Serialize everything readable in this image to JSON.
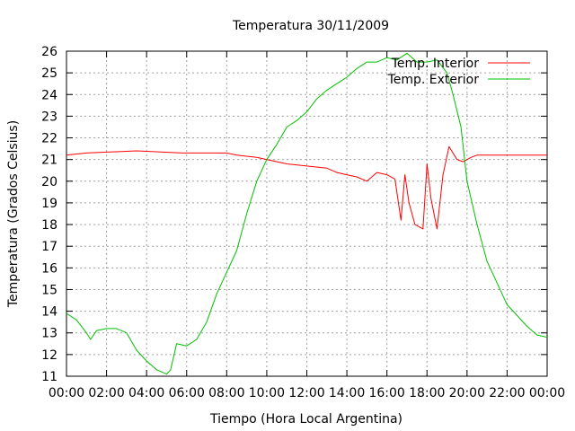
{
  "chart_data": {
    "type": "line",
    "title": "Temperatura 30/11/2009",
    "xlabel": "Tiempo (Hora Local Argentina)",
    "ylabel": "Temperatura (Grados Celsius)",
    "xlim": [
      0,
      24
    ],
    "ylim": [
      11,
      26
    ],
    "grid": true,
    "legend_position": "top-right",
    "x_ticks": [
      "00:00",
      "02:00",
      "04:00",
      "06:00",
      "08:00",
      "10:00",
      "12:00",
      "14:00",
      "16:00",
      "18:00",
      "20:00",
      "22:00",
      "00:00"
    ],
    "y_ticks": [
      11,
      12,
      13,
      14,
      15,
      16,
      17,
      18,
      19,
      20,
      21,
      22,
      23,
      24,
      25,
      26
    ],
    "series": [
      {
        "name": "Temp. Interior",
        "color": "#ff0000",
        "x": [
          0,
          1,
          3.5,
          5.8,
          8,
          8.5,
          9.5,
          10.5,
          11,
          12,
          13,
          13.5,
          14,
          14.5,
          15,
          15.5,
          16,
          16.4,
          16.7,
          16.9,
          17.1,
          17.4,
          17.8,
          18,
          18.2,
          18.5,
          18.8,
          19.1,
          19.5,
          19.8,
          20.2,
          20.5,
          21,
          22,
          24
        ],
        "values": [
          21.2,
          21.3,
          21.4,
          21.3,
          21.3,
          21.2,
          21.1,
          20.9,
          20.8,
          20.7,
          20.6,
          20.4,
          20.3,
          20.2,
          20.0,
          20.4,
          20.3,
          20.1,
          18.2,
          20.3,
          19.0,
          18.0,
          17.8,
          20.8,
          19.2,
          17.8,
          20.3,
          21.6,
          21.0,
          20.9,
          21.1,
          21.2,
          21.2,
          21.2,
          21.2
        ]
      },
      {
        "name": "Temp. Exterior",
        "color": "#00c000",
        "x": [
          0,
          0.5,
          1,
          1.2,
          1.5,
          2,
          2.5,
          3,
          3.5,
          4,
          4.5,
          5,
          5.2,
          5.5,
          6,
          6.5,
          7,
          7.5,
          8,
          8.5,
          9,
          9.5,
          10,
          10.5,
          11,
          11.5,
          12,
          12.5,
          13,
          13.5,
          14,
          14.5,
          15,
          15.5,
          16,
          16.5,
          17,
          17.5,
          18,
          18.5,
          19,
          19.3,
          19.7,
          20,
          20.5,
          21,
          21.5,
          22,
          22.5,
          23,
          23.5,
          24
        ],
        "values": [
          13.9,
          13.6,
          13.0,
          12.7,
          13.1,
          13.2,
          13.2,
          13.0,
          12.2,
          11.7,
          11.3,
          11.1,
          11.3,
          12.5,
          12.4,
          12.7,
          13.5,
          14.8,
          15.8,
          16.8,
          18.5,
          20.0,
          21.0,
          21.7,
          22.5,
          22.8,
          23.2,
          23.8,
          24.2,
          24.5,
          24.8,
          25.2,
          25.5,
          25.5,
          25.7,
          25.6,
          25.9,
          25.5,
          25.5,
          25.6,
          25.0,
          24.0,
          22.5,
          20.0,
          18.0,
          16.3,
          15.3,
          14.3,
          13.8,
          13.3,
          12.9,
          12.8
        ]
      }
    ]
  }
}
